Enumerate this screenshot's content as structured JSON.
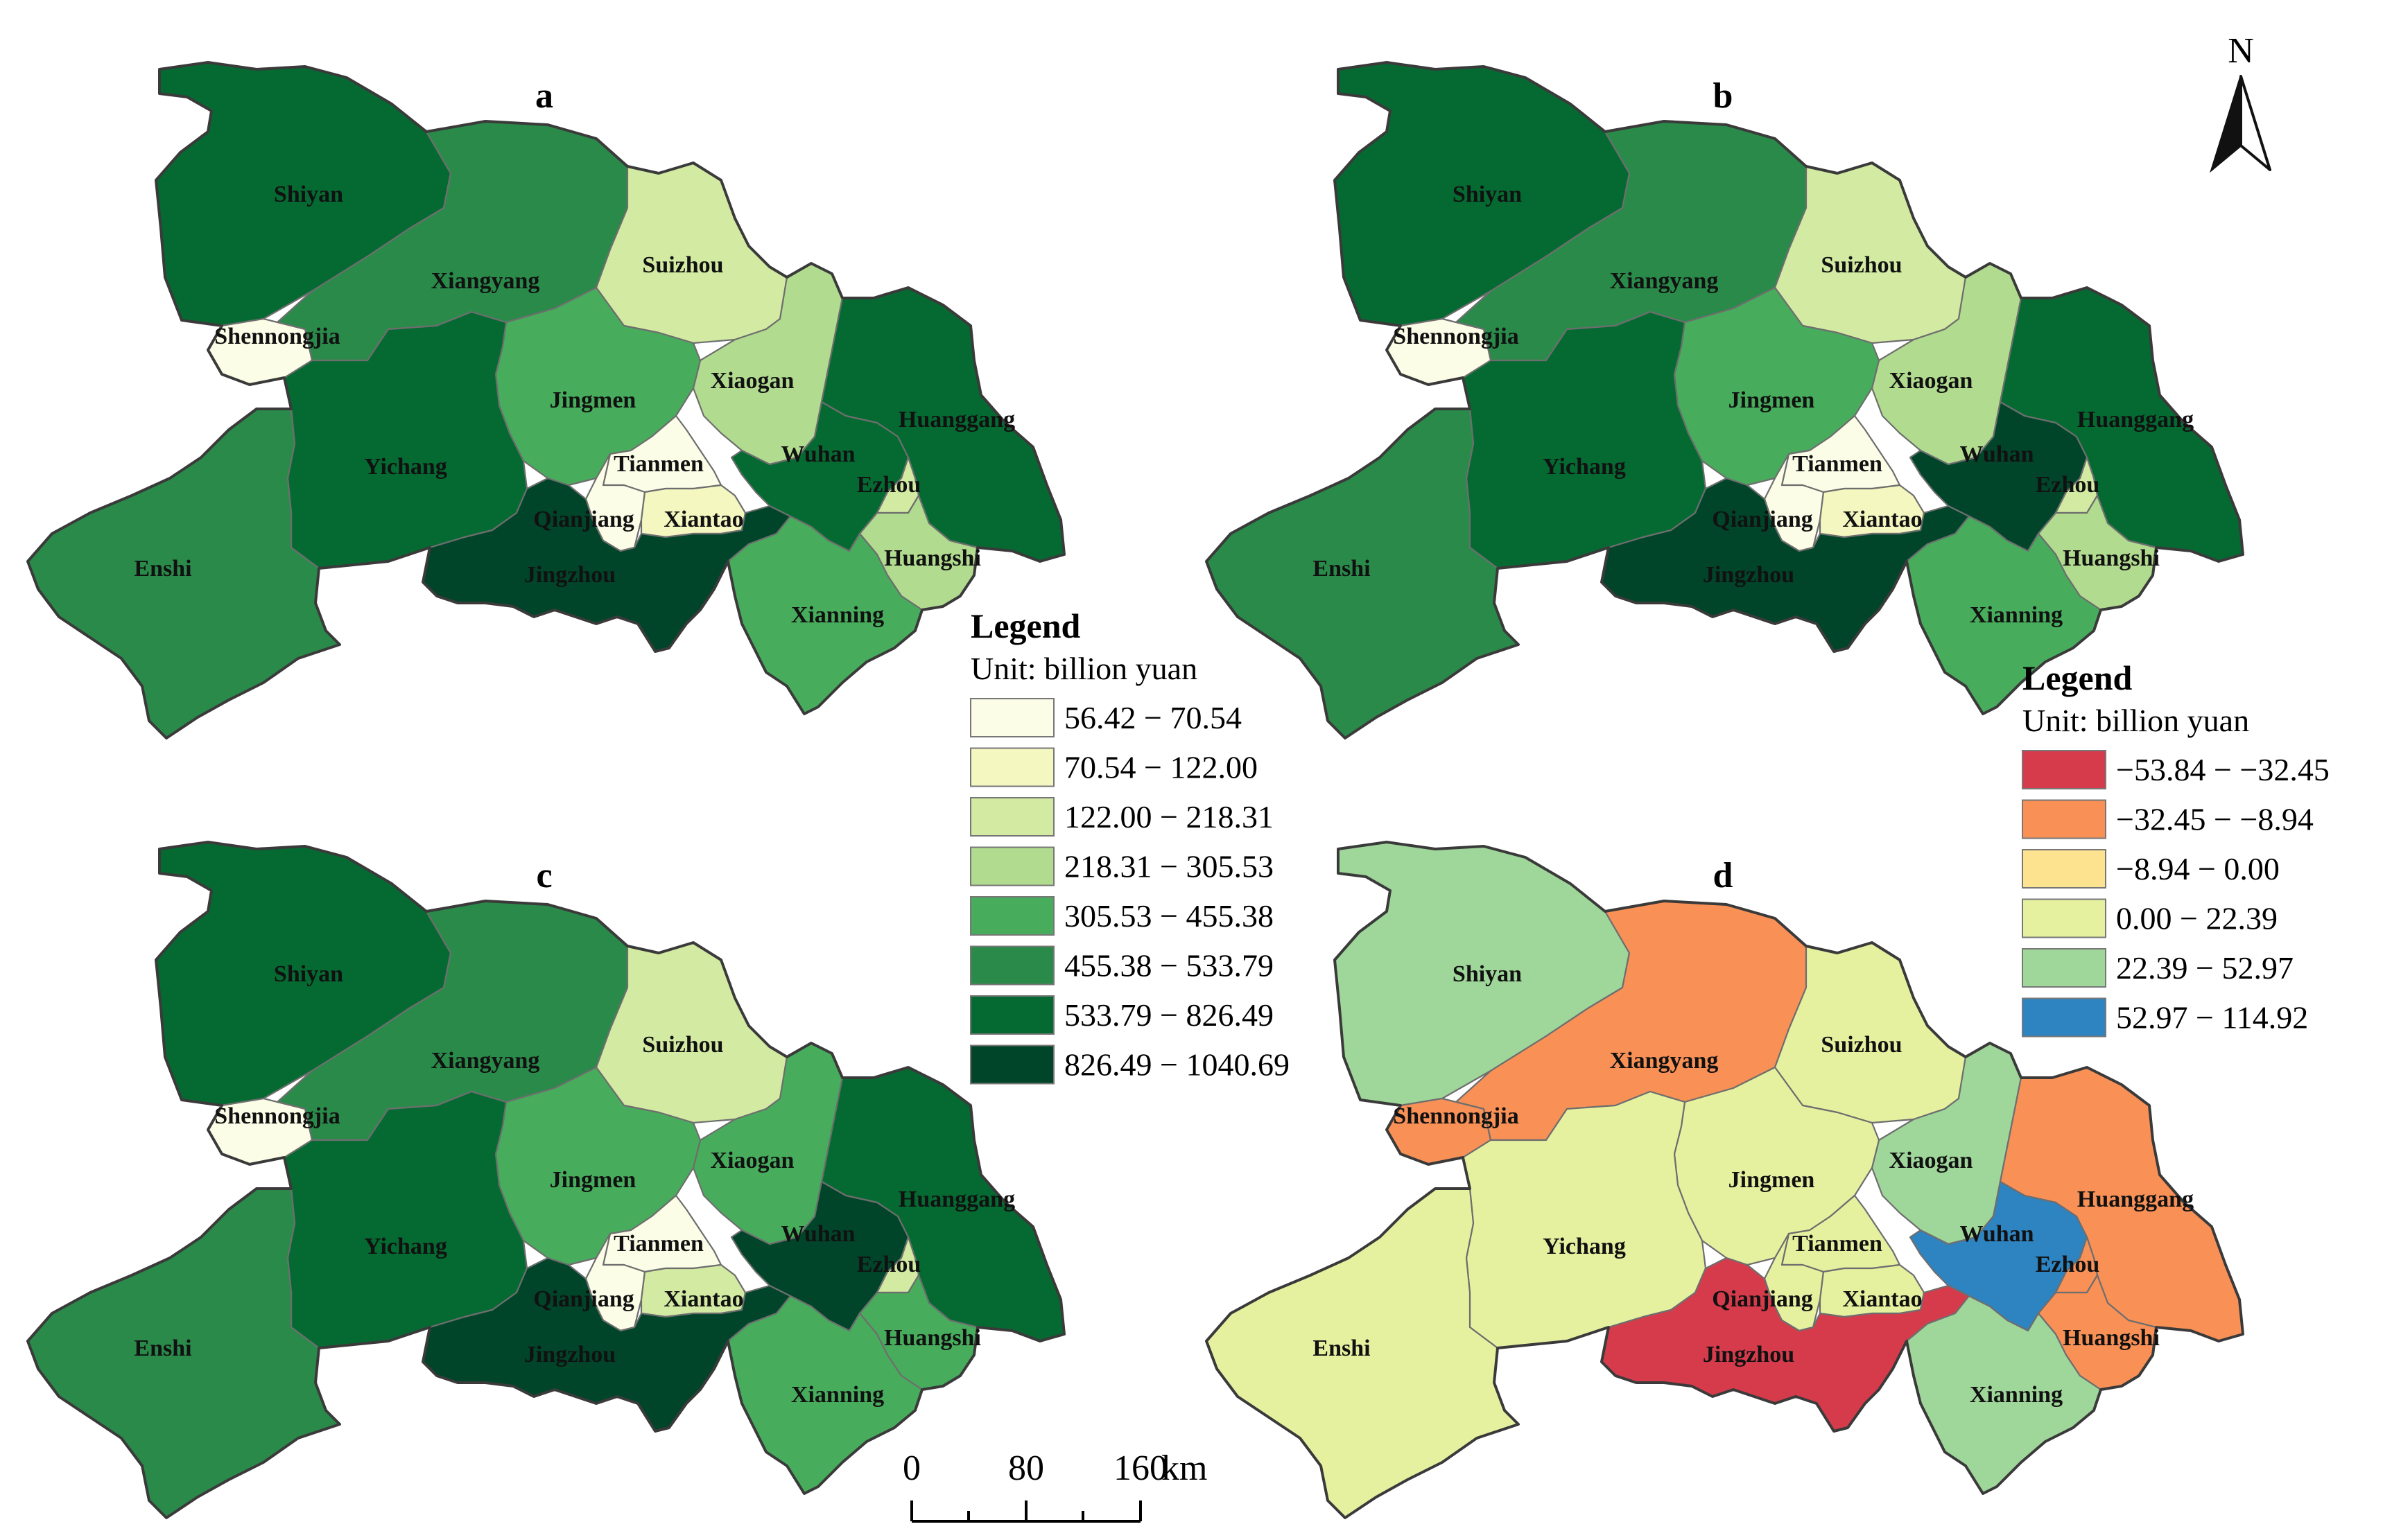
{
  "panels": [
    {
      "id": "a",
      "title": "a",
      "colors": {
        "Shiyan": "#056a32",
        "Xiangyang": "#2a8a4a",
        "Suizhou": "#d2eaa2",
        "Shennongjia": "#fcfde7",
        "Xiaogan": "#b1dc8f",
        "Jingmen": "#47ad5c",
        "Huanggang": "#056a32",
        "Yichang": "#056a32",
        "Tianmen": "#fcfde7",
        "Wuhan": "#056a32",
        "Ezhou": "#d2eaa2",
        "Qianjiang": "#fcfde7",
        "Xiantao": "#f4f7c0",
        "Enshi": "#2a8a4a",
        "Jingzhou": "#00452a",
        "Huangshi": "#b1dc8f",
        "Xianning": "#47ad5c"
      }
    },
    {
      "id": "b",
      "title": "b",
      "colors": {
        "Shiyan": "#056a32",
        "Xiangyang": "#2a8a4a",
        "Suizhou": "#d2eaa2",
        "Shennongjia": "#fcfde7",
        "Xiaogan": "#b1dc8f",
        "Jingmen": "#47ad5c",
        "Huanggang": "#056a32",
        "Yichang": "#056a32",
        "Tianmen": "#fcfde7",
        "Wuhan": "#00452a",
        "Ezhou": "#d2eaa2",
        "Qianjiang": "#fcfde7",
        "Xiantao": "#f4f7c0",
        "Enshi": "#2a8a4a",
        "Jingzhou": "#00452a",
        "Huangshi": "#b1dc8f",
        "Xianning": "#47ad5c"
      }
    },
    {
      "id": "c",
      "title": "c",
      "colors": {
        "Shiyan": "#056a32",
        "Xiangyang": "#2a8a4a",
        "Suizhou": "#d2eaa2",
        "Shennongjia": "#fcfde7",
        "Xiaogan": "#47ad5c",
        "Jingmen": "#47ad5c",
        "Huanggang": "#056a32",
        "Yichang": "#056a32",
        "Tianmen": "#fcfde7",
        "Wuhan": "#00452a",
        "Ezhou": "#d2eaa2",
        "Qianjiang": "#fcfde7",
        "Xiantao": "#d2eaa2",
        "Enshi": "#2a8a4a",
        "Jingzhou": "#00452a",
        "Huangshi": "#47ad5c",
        "Xianning": "#47ad5c"
      }
    },
    {
      "id": "d",
      "title": "d",
      "colors": {
        "Shiyan": "#9fd69a",
        "Xiangyang": "#f99157",
        "Suizhou": "#e6f1a0",
        "Shennongjia": "#f99157",
        "Xiaogan": "#9fd69a",
        "Jingmen": "#e6f1a0",
        "Huanggang": "#f99157",
        "Yichang": "#e6f1a0",
        "Tianmen": "#e6f1a0",
        "Wuhan": "#2e83c1",
        "Ezhou": "#f99157",
        "Qianjiang": "#e6f1a0",
        "Xiantao": "#e6f1a0",
        "Enshi": "#e6f1a0",
        "Jingzhou": "#d63b4b",
        "Huangshi": "#f99157",
        "Xianning": "#9fd69a"
      }
    }
  ],
  "legend1": {
    "title": "Legend",
    "unit": "Unit: billion yuan",
    "items": [
      {
        "label": "56.42 − 70.54",
        "color": "#fcfde7"
      },
      {
        "label": "70.54 − 122.00",
        "color": "#f4f7c0"
      },
      {
        "label": "122.00 − 218.31",
        "color": "#d2eaa2"
      },
      {
        "label": "218.31 − 305.53",
        "color": "#b1dc8f"
      },
      {
        "label": "305.53 − 455.38",
        "color": "#47ad5c"
      },
      {
        "label": "455.38 − 533.79",
        "color": "#2a8a4a"
      },
      {
        "label": "533.79 − 826.49",
        "color": "#056a32"
      },
      {
        "label": "826.49 − 1040.69",
        "color": "#00452a"
      }
    ]
  },
  "legend2": {
    "title": "Legend",
    "unit": "Unit: billion yuan",
    "items": [
      {
        "label": "−53.84 − −32.45",
        "color": "#d63b4b"
      },
      {
        "label": "−32.45 − −8.94",
        "color": "#f99157"
      },
      {
        "label": "−8.94 − 0.00",
        "color": "#fde28f"
      },
      {
        "label": "0.00 − 22.39",
        "color": "#e6f1a0"
      },
      {
        "label": "22.39 − 52.97",
        "color": "#9fd69a"
      },
      {
        "label": "52.97 − 114.92",
        "color": "#2e83c1"
      }
    ]
  },
  "north_arrow": {
    "label": "N"
  },
  "scale_bar": {
    "ticks": [
      "0",
      "80",
      "160"
    ],
    "unit": "km"
  }
}
